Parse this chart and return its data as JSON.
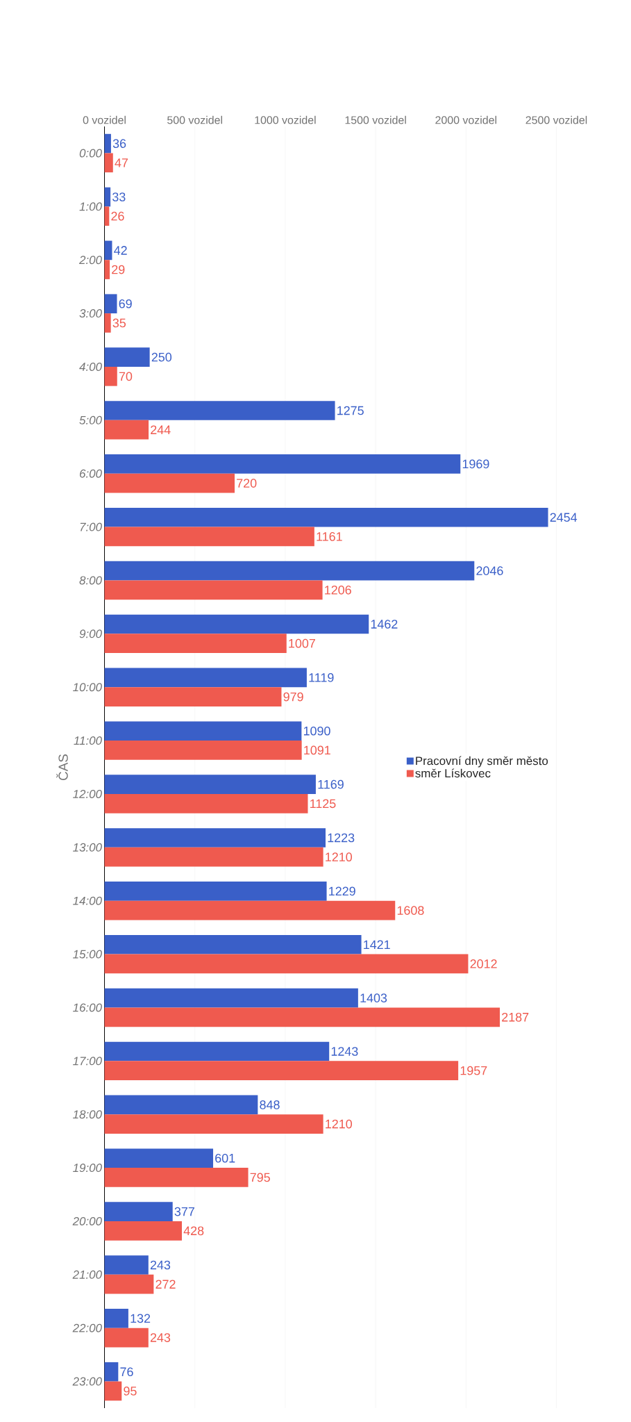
{
  "chart_data": {
    "type": "bar",
    "orientation": "horizontal",
    "ylabel": "ČAS",
    "categories": [
      "0:00",
      "1:00",
      "2:00",
      "3:00",
      "4:00",
      "5:00",
      "6:00",
      "7:00",
      "8:00",
      "9:00",
      "10:00",
      "11:00",
      "12:00",
      "13:00",
      "14:00",
      "15:00",
      "16:00",
      "17:00",
      "18:00",
      "19:00",
      "20:00",
      "21:00",
      "22:00",
      "23:00"
    ],
    "series": [
      {
        "name": "Pracovní dny směr město",
        "color": "#3a5fc8",
        "values": [
          36,
          33,
          42,
          69,
          250,
          1275,
          1969,
          2454,
          2046,
          1462,
          1119,
          1090,
          1169,
          1223,
          1229,
          1421,
          1403,
          1243,
          848,
          601,
          377,
          243,
          132,
          76
        ]
      },
      {
        "name": "směr Lískovec",
        "color": "#ef5a4f",
        "values": [
          47,
          26,
          29,
          35,
          70,
          244,
          720,
          1161,
          1206,
          1007,
          979,
          1091,
          1125,
          1210,
          1608,
          2012,
          2187,
          1957,
          1210,
          795,
          428,
          272,
          243,
          95
        ]
      }
    ],
    "xlim": [
      0,
      2500
    ],
    "xticks": [
      {
        "value": 0,
        "label": "0 vozidel"
      },
      {
        "value": 500,
        "label": "500 vozidel"
      },
      {
        "value": 1000,
        "label": "1000 vozidel"
      },
      {
        "value": 1500,
        "label": "1500 vozidel"
      },
      {
        "value": 2000,
        "label": "2000 vozidel"
      },
      {
        "value": 2500,
        "label": "2500 vozidel"
      }
    ],
    "grid": "x",
    "legend": "right",
    "data_labels": true
  }
}
